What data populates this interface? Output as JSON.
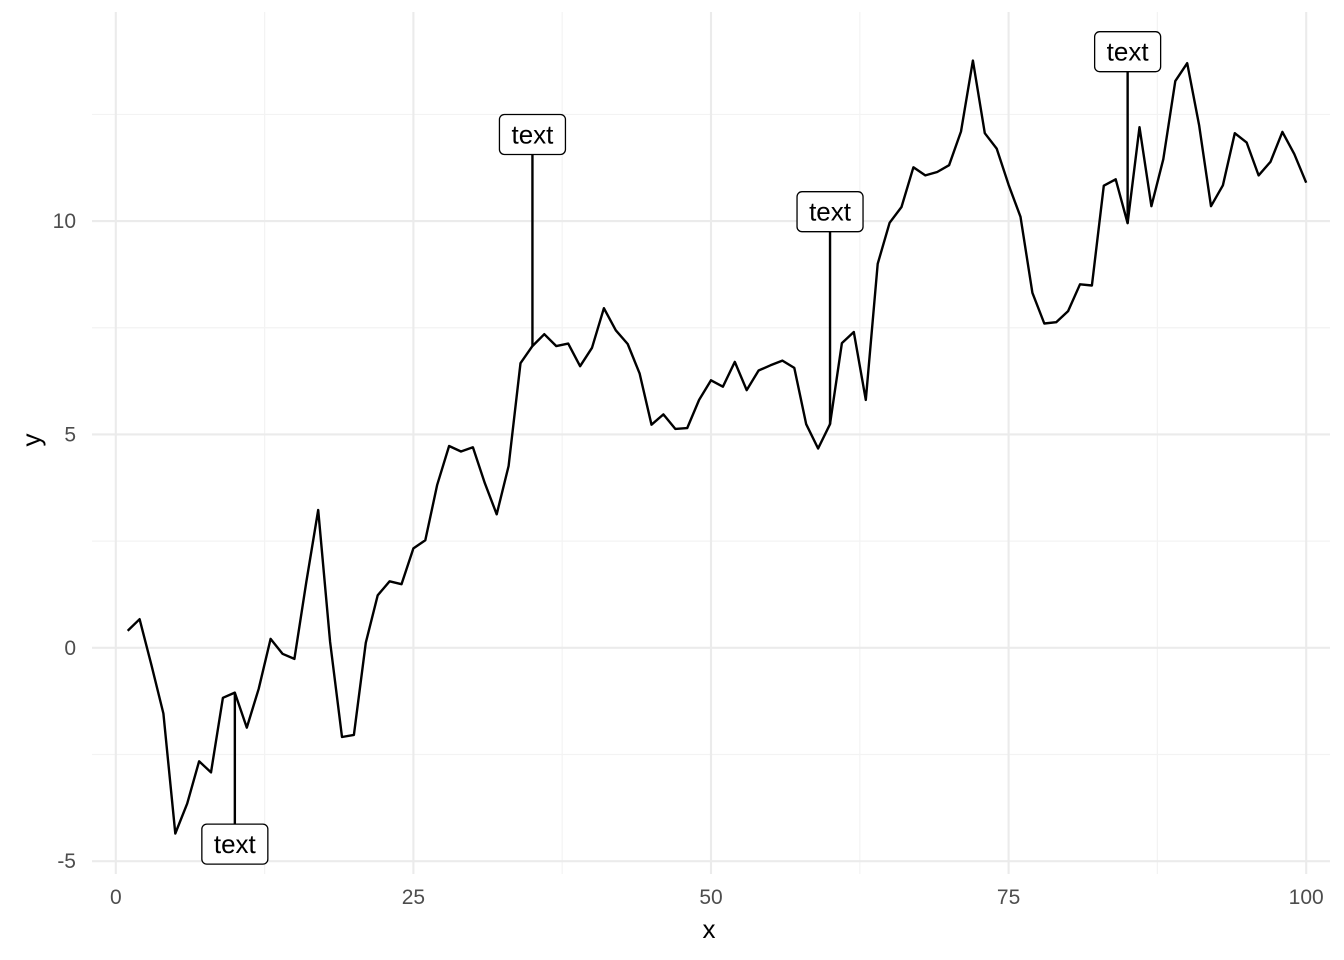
{
  "chart_data": {
    "type": "line",
    "title": "",
    "xlabel": "x",
    "ylabel": "y",
    "xlim": [
      -2,
      102
    ],
    "ylim": [
      -5.3,
      14.9
    ],
    "x_ticks": [
      0,
      25,
      50,
      75,
      100
    ],
    "y_ticks": [
      -5,
      0,
      5,
      10
    ],
    "x_tick_labels": [
      "0",
      "25",
      "50",
      "75",
      "100"
    ],
    "y_tick_labels": [
      "-5",
      "0",
      "5",
      "10"
    ],
    "x_minor_ticks": [
      12.5,
      37.5,
      62.5,
      87.5
    ],
    "y_minor_ticks": [
      -2.5,
      2.5,
      7.5,
      12.5
    ],
    "grid": true,
    "legend": "none",
    "series": [
      {
        "x": [
          1,
          2,
          3,
          4,
          5,
          6,
          7,
          8,
          9,
          10,
          11,
          12,
          13,
          14,
          15,
          16,
          17,
          18,
          19,
          20,
          21,
          22,
          23,
          24,
          25,
          26,
          27,
          28,
          29,
          30,
          31,
          32,
          33,
          34,
          35,
          36,
          37,
          38,
          39,
          40,
          41,
          42,
          43,
          44,
          45,
          46,
          47,
          48,
          49,
          50,
          51,
          52,
          53,
          54,
          55,
          56,
          57,
          58,
          59,
          60,
          61,
          62,
          63,
          64,
          65,
          66,
          67,
          68,
          69,
          70,
          71,
          72,
          73,
          74,
          75,
          76,
          77,
          78,
          79,
          80,
          81,
          82,
          83,
          84,
          85,
          86,
          87,
          88,
          89,
          90,
          91,
          92,
          93,
          94,
          95,
          96,
          97,
          98,
          99,
          100
        ],
        "y": [
          0.4,
          0.67,
          -0.41,
          -1.54,
          -4.35,
          -3.65,
          -2.66,
          -2.92,
          -1.17,
          -1.05,
          -1.87,
          -0.96,
          0.21,
          -0.14,
          -0.26,
          1.54,
          3.23,
          0.14,
          -2.09,
          -2.04,
          0.12,
          1.23,
          1.56,
          1.49,
          2.33,
          2.52,
          3.82,
          4.73,
          4.6,
          4.7,
          3.86,
          3.13,
          4.26,
          6.67,
          7.07,
          7.35,
          7.07,
          7.13,
          6.6,
          7.03,
          7.96,
          7.44,
          7.12,
          6.43,
          5.23,
          5.47,
          5.13,
          5.15,
          5.81,
          6.27,
          6.12,
          6.7,
          6.04,
          6.5,
          6.62,
          6.73,
          6.56,
          5.24,
          4.67,
          5.24,
          7.14,
          7.4,
          5.81,
          9.0,
          9.96,
          10.33,
          11.26,
          11.07,
          11.15,
          11.31,
          12.1,
          13.76,
          12.06,
          11.7,
          10.85,
          10.1,
          8.32,
          7.6,
          7.63,
          7.89,
          8.52,
          8.49,
          10.83,
          10.98,
          9.95,
          12.2,
          10.35,
          11.45,
          13.28,
          13.7,
          12.25,
          10.35,
          10.84,
          12.06,
          11.84,
          11.07,
          11.39,
          12.09,
          11.57,
          10.9
        ]
      }
    ],
    "annotations": [
      {
        "text": "text",
        "x": 10,
        "y": -1.05,
        "label_y": -4.6
      },
      {
        "text": "text",
        "x": 35,
        "y": 7.07,
        "label_y": 12.03
      },
      {
        "text": "text",
        "x": 60,
        "y": 5.24,
        "label_y": 10.22
      },
      {
        "text": "text",
        "x": 85,
        "y": 9.95,
        "label_y": 13.97
      }
    ]
  }
}
